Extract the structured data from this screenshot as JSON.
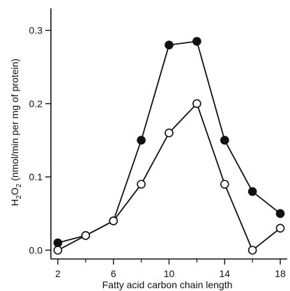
{
  "chart_data": {
    "type": "line",
    "title": "",
    "xlabel": "Fatty acid carbon chain length",
    "ylabel_parts": {
      "base": "H",
      "sub": "2",
      "mid": "O",
      "sub2": "2",
      "rest": " (nmol/min per mg of protein)"
    },
    "xlim": [
      1.5,
      18.5
    ],
    "ylim": [
      -0.012,
      0.33
    ],
    "x_ticks": [
      2,
      6,
      10,
      14,
      18
    ],
    "x_minor_ticks": [
      4,
      8,
      12,
      16
    ],
    "y_ticks": [
      0.0,
      0.1,
      0.2,
      0.3
    ],
    "y_tick_labels": [
      "0.0",
      "0.1",
      "0.2",
      "0.3"
    ],
    "x_tick_labels": [
      "2",
      "6",
      "10",
      "14",
      "18"
    ],
    "grid": false,
    "series": [
      {
        "marker": "filled-circle",
        "x": [
          2,
          4,
          6,
          8,
          10,
          12,
          14,
          16,
          18
        ],
        "y": [
          0.01,
          0.02,
          0.04,
          0.15,
          0.28,
          0.285,
          0.15,
          0.08,
          0.05
        ]
      },
      {
        "marker": "open-circle",
        "x": [
          2,
          4,
          6,
          8,
          10,
          12,
          14,
          16,
          18
        ],
        "y": [
          0.0,
          0.02,
          0.04,
          0.09,
          0.16,
          0.2,
          0.09,
          0.0,
          0.03
        ]
      }
    ]
  }
}
